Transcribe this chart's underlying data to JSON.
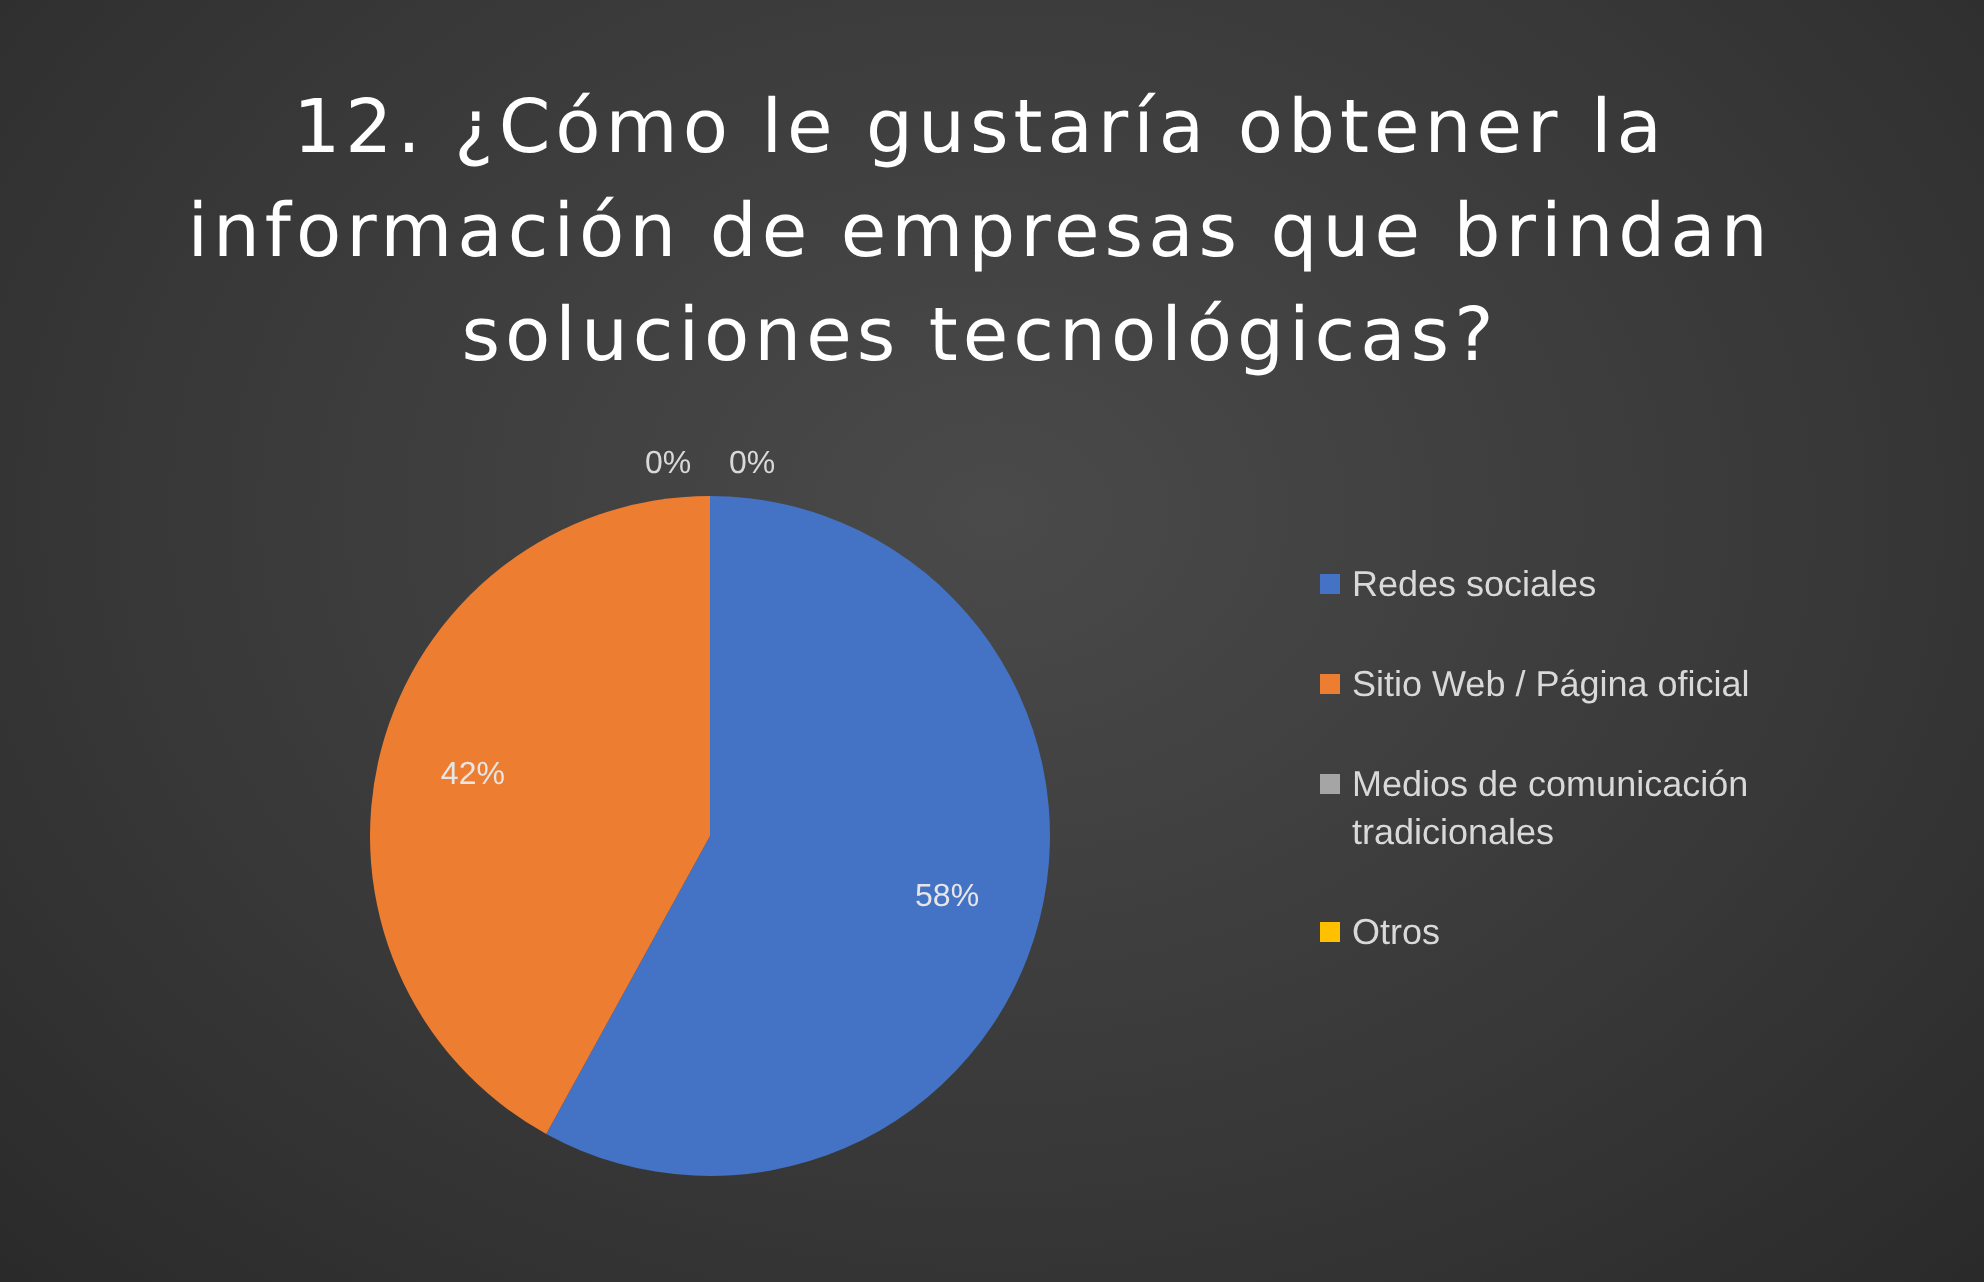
{
  "chart_data": {
    "type": "pie",
    "title": "12. ¿Cómo le gustaría obtener la información de empresas que brindan soluciones tecnológicas?",
    "categories": [
      "Redes sociales",
      "Sitio Web / Página oficial",
      "Medios de comunicación tradicionales",
      "Otros"
    ],
    "values": [
      58,
      42,
      0,
      0
    ],
    "colors": [
      "#4472c4",
      "#ed7d31",
      "#a5a5a5",
      "#ffc000"
    ],
    "value_labels": [
      "58%",
      "42%",
      "0%",
      "0%"
    ],
    "legend": "right"
  }
}
